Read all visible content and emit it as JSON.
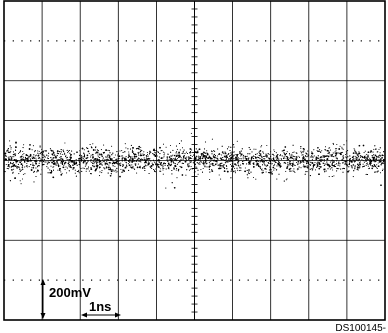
{
  "chart_data": {
    "type": "scatter",
    "title": "",
    "xlabel": "",
    "ylabel": "",
    "grid": true,
    "divisions": {
      "x": 10,
      "y": 8
    },
    "trace": {
      "description_level_div": 0.0,
      "noise_band_div": 0.35
    },
    "scale_markers": {
      "voltage": "200mV",
      "time": "1ns"
    }
  },
  "figure_code": "DS100145-"
}
